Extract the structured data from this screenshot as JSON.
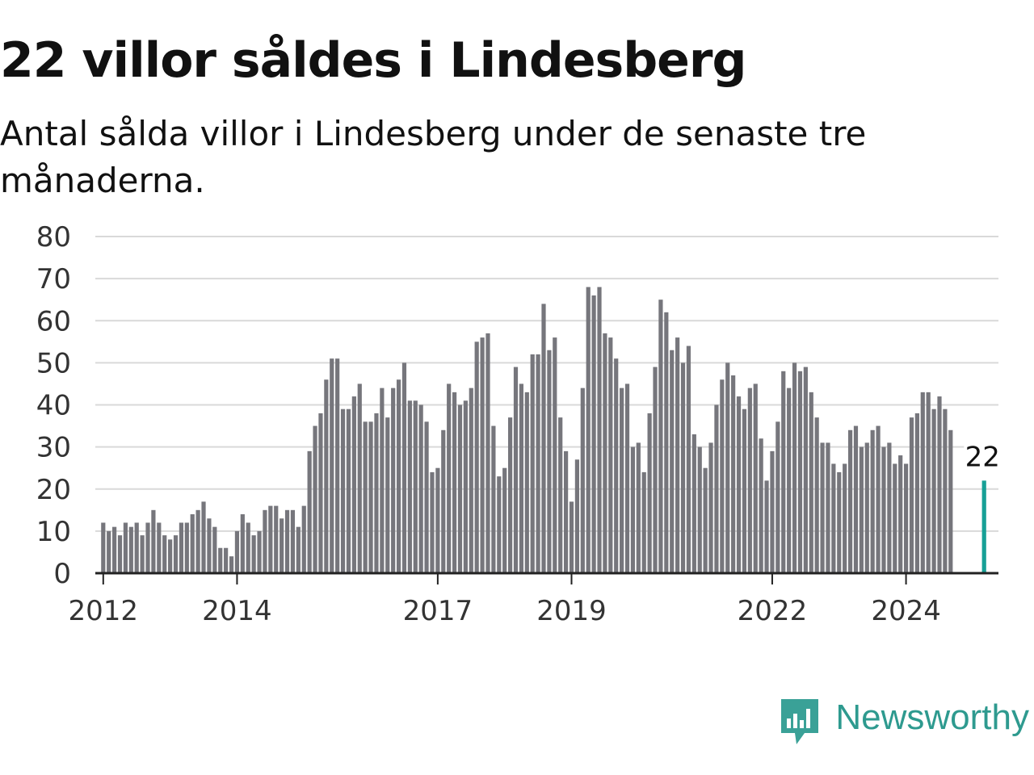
{
  "header": {
    "title": "22 villor såldes i Lindesberg",
    "subtitle": "Antal sålda villor i Lindesberg under de senaste tre månaderna."
  },
  "colors": {
    "bar": "#76767c",
    "highlight": "#17a096",
    "grid": "#d9d9d9",
    "axis": "#222222",
    "brand": "#2e9a8f"
  },
  "brand": {
    "name": "Newsworthy",
    "icon": "newsworthy-chart-bubble-icon"
  },
  "chart_data": {
    "type": "bar",
    "title": "22 villor såldes i Lindesberg",
    "subtitle": "Antal sålda villor i Lindesberg under de senaste tre månaderna.",
    "xlabel": "",
    "ylabel": "",
    "ylim": [
      0,
      80
    ],
    "y_ticks": [
      "0",
      "10",
      "20",
      "30",
      "40",
      "50",
      "60",
      "70",
      "80"
    ],
    "x_ticks": [
      {
        "label": "2012",
        "month": "2012-01"
      },
      {
        "label": "2014",
        "month": "2014-01"
      },
      {
        "label": "2017",
        "month": "2017-01"
      },
      {
        "label": "2019",
        "month": "2019-01"
      },
      {
        "label": "2022",
        "month": "2022-01"
      },
      {
        "label": "2024",
        "month": "2024-01"
      }
    ],
    "grid": true,
    "x_start": "2011-12",
    "x_end": "2025-06",
    "categories": [
      "2012-01",
      "2012-02",
      "2012-03",
      "2012-04",
      "2012-05",
      "2012-06",
      "2012-07",
      "2012-08",
      "2012-09",
      "2012-10",
      "2012-11",
      "2012-12",
      "2013-01",
      "2013-02",
      "2013-03",
      "2013-04",
      "2013-05",
      "2013-06",
      "2013-07",
      "2013-08",
      "2013-09",
      "2013-10",
      "2013-11",
      "2013-12",
      "2014-01",
      "2014-02",
      "2014-03",
      "2014-04",
      "2014-05",
      "2014-06",
      "2014-07",
      "2014-08",
      "2014-09",
      "2014-10",
      "2014-11",
      "2014-12",
      "2015-01",
      "2015-02",
      "2015-03",
      "2015-04",
      "2015-05",
      "2015-06",
      "2015-07",
      "2015-08",
      "2015-09",
      "2015-10",
      "2015-11",
      "2015-12",
      "2016-01",
      "2016-02",
      "2016-03",
      "2016-04",
      "2016-05",
      "2016-06",
      "2016-07",
      "2016-08",
      "2016-09",
      "2016-10",
      "2016-11",
      "2016-12",
      "2017-01",
      "2017-02",
      "2017-03",
      "2017-04",
      "2017-05",
      "2017-06",
      "2017-07",
      "2017-08",
      "2017-09",
      "2017-10",
      "2017-11",
      "2017-12",
      "2018-01",
      "2018-02",
      "2018-03",
      "2018-04",
      "2018-05",
      "2018-06",
      "2018-07",
      "2018-08",
      "2018-09",
      "2018-10",
      "2018-11",
      "2018-12",
      "2019-01",
      "2019-02",
      "2019-03",
      "2019-04",
      "2019-05",
      "2019-06",
      "2019-07",
      "2019-08",
      "2019-09",
      "2019-10",
      "2019-11",
      "2019-12",
      "2020-01",
      "2020-02",
      "2020-03",
      "2020-04",
      "2020-05",
      "2020-06",
      "2020-07",
      "2020-08",
      "2020-09",
      "2020-10",
      "2020-11",
      "2020-12",
      "2021-01",
      "2021-02",
      "2021-03",
      "2021-04",
      "2021-05",
      "2021-06",
      "2021-07",
      "2021-08",
      "2021-09",
      "2021-10",
      "2021-11",
      "2021-12",
      "2022-01",
      "2022-02",
      "2022-03",
      "2022-04",
      "2022-05",
      "2022-06",
      "2022-07",
      "2022-08",
      "2022-09",
      "2022-10",
      "2022-11",
      "2022-12",
      "2023-01",
      "2023-02",
      "2023-03",
      "2023-04",
      "2023-05",
      "2023-06",
      "2023-07",
      "2023-08",
      "2023-09",
      "2023-10",
      "2023-11",
      "2023-12",
      "2024-01",
      "2024-02",
      "2024-03",
      "2024-04",
      "2024-05",
      "2024-06",
      "2024-07",
      "2024-08",
      "2024-09",
      "2024-10",
      "2024-11",
      "2024-12",
      "2025-01",
      "2025-02",
      "2025-03"
    ],
    "values": [
      12,
      10,
      11,
      9,
      12,
      11,
      12,
      9,
      12,
      15,
      12,
      9,
      8,
      9,
      12,
      12,
      14,
      15,
      17,
      13,
      11,
      6,
      6,
      4,
      10,
      14,
      12,
      9,
      10,
      15,
      16,
      16,
      13,
      15,
      15,
      11,
      16,
      29,
      35,
      38,
      46,
      51,
      51,
      39,
      39,
      42,
      45,
      36,
      36,
      38,
      44,
      37,
      44,
      46,
      50,
      41,
      41,
      40,
      36,
      24,
      25,
      34,
      45,
      43,
      40,
      41,
      44,
      55,
      56,
      57,
      35,
      23,
      25,
      37,
      49,
      45,
      43,
      52,
      52,
      64,
      53,
      56,
      37,
      29,
      17,
      27,
      44,
      68,
      66,
      68,
      57,
      56,
      51,
      44,
      45,
      30,
      31,
      24,
      38,
      49,
      65,
      62,
      53,
      56,
      50,
      54,
      33,
      30,
      25,
      31,
      40,
      46,
      50,
      47,
      42,
      39,
      44,
      45,
      32,
      22,
      29,
      36,
      48,
      44,
      50,
      48,
      49,
      43,
      37,
      31,
      31,
      26,
      24,
      26,
      34,
      35,
      30,
      31,
      34,
      35,
      30,
      31,
      26,
      28,
      26,
      37,
      38,
      43,
      43,
      39,
      42,
      39,
      34,
      null,
      null,
      null,
      null,
      null,
      22
    ],
    "highlight": {
      "category": "2025-03",
      "value": 22,
      "label": "22"
    }
  }
}
